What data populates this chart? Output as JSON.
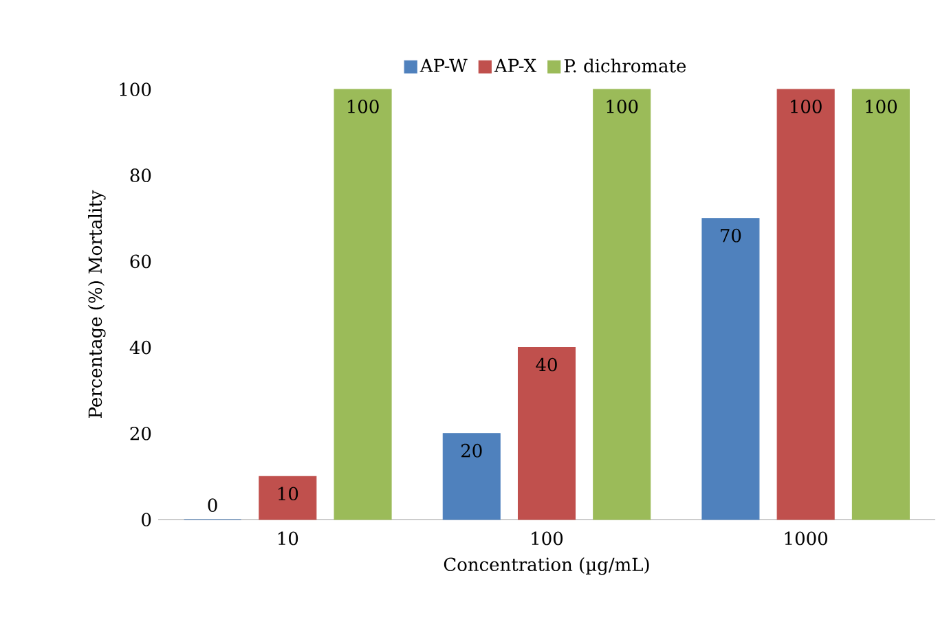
{
  "chart_data": {
    "type": "bar",
    "xlabel": "Concentration (µg/mL)",
    "ylabel": "Percentage (%) Mortality",
    "categories": [
      "10",
      "100",
      "1000"
    ],
    "series": [
      {
        "name": "AP-W",
        "color": "#4f81bd",
        "values": [
          0,
          20,
          70
        ]
      },
      {
        "name": "AP-X",
        "color": "#c0504d",
        "values": [
          10,
          40,
          100
        ]
      },
      {
        "name": "P. dichromate",
        "color": "#9bbb59",
        "values": [
          100,
          100,
          100
        ]
      }
    ],
    "ylim": [
      0,
      100
    ],
    "yticks": [
      0,
      20,
      40,
      60,
      80,
      100
    ],
    "data_labels": true,
    "legend": "top",
    "grid": false
  }
}
